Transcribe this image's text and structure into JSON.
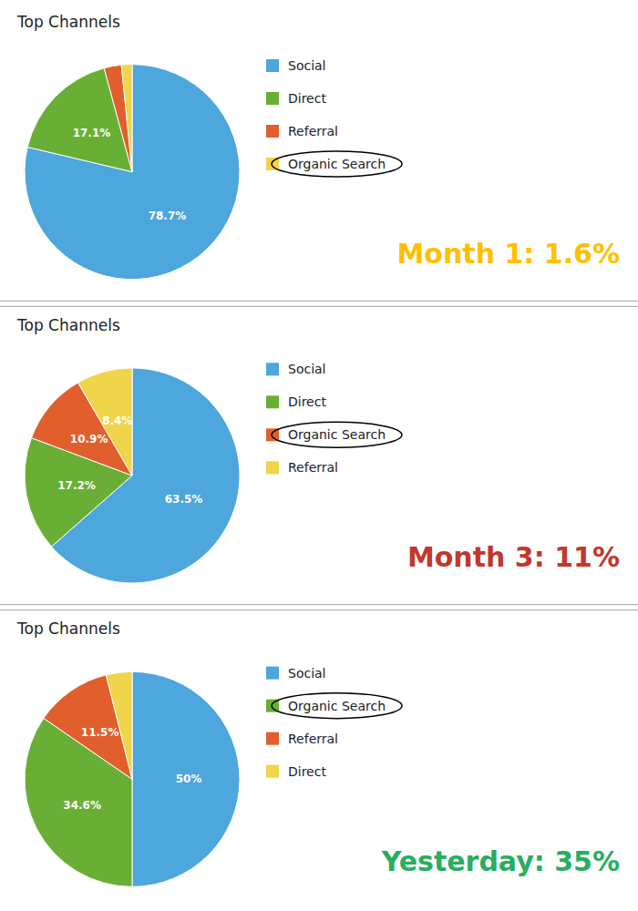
{
  "chart_data": [
    {
      "type": "pie",
      "title": "Top Channels",
      "categories": [
        "Social",
        "Direct",
        "Referral",
        "Organic Search"
      ],
      "values": [
        78.7,
        17.1,
        2.6,
        1.6
      ],
      "value_labels": [
        "78.7%",
        "17.1%",
        null,
        null
      ],
      "colors": [
        "#4DA6DC",
        "#6AAF35",
        "#E05F2C",
        "#F0D44A"
      ],
      "data_labels": true,
      "legend": "right",
      "annotations": [
        {
          "text": "Month 1: 1.6%",
          "color": "#FFC000",
          "category": "Organic Search"
        }
      ]
    },
    {
      "type": "pie",
      "title": "Top Channels",
      "categories": [
        "Social",
        "Direct",
        "Organic Search",
        "Referral"
      ],
      "values": [
        63.5,
        17.2,
        10.9,
        8.4
      ],
      "value_labels": [
        "63.5%",
        "17.2%",
        "10.9%",
        "8.4%"
      ],
      "colors": [
        "#4DA6DC",
        "#6AAF35",
        "#E05F2C",
        "#F0D44A"
      ],
      "data_labels": true,
      "legend": "right",
      "annotations": [
        {
          "text": "Month 3: 11%",
          "color": "#C0392B",
          "category": "Organic Search"
        }
      ]
    },
    {
      "type": "pie",
      "title": "Top Channels",
      "categories": [
        "Social",
        "Organic Search",
        "Referral",
        "Direct"
      ],
      "values": [
        50.0,
        34.6,
        11.5,
        3.9
      ],
      "value_labels": [
        "50%",
        "34.6%",
        "11.5%",
        null
      ],
      "colors": [
        "#4DA6DC",
        "#6AAF35",
        "#E05F2C",
        "#F0D44A"
      ],
      "data_labels": true,
      "legend": "right",
      "annotations": [
        {
          "text": "Yesterday: 35%",
          "color": "#27AE60",
          "category": "Organic Search"
        }
      ]
    }
  ]
}
